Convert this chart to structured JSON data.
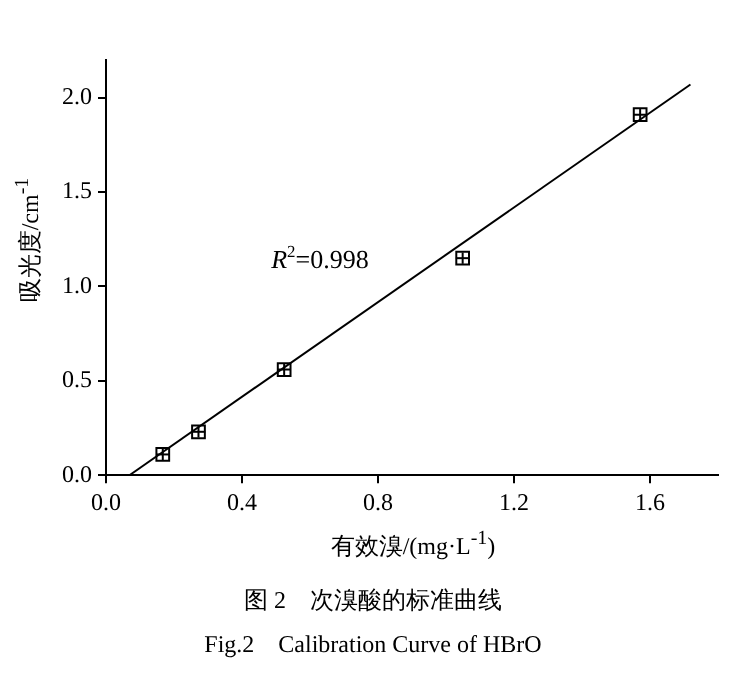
{
  "chart_data": {
    "type": "scatter",
    "xlabel": "有效溴/(mg·L$^{-1}$)",
    "ylabel": "吸光度/cm$^{-1}$",
    "x": [
      0.167,
      0.272,
      0.524,
      1.049,
      1.571
    ],
    "series": [
      {
        "color": "#000000",
        "values": [
          0.11,
          0.23,
          0.56,
          1.15,
          1.91
        ],
        "errors": [
          0.03,
          0.03,
          0.03,
          0.03,
          0.03
        ],
        "xerrors": [
          0.02,
          0.02,
          0.02,
          0.02,
          0.02
        ],
        "marker": "square"
      },
      {
        "type": "line",
        "color": "#000000",
        "x": [
          0.069,
          1.719
        ],
        "values": [
          0,
          2.07
        ],
        "marker": "none",
        "line_style": "solid"
      }
    ],
    "annotations": [
      "R$^{2}$=0.998",
      "图 2　次溴酸的标准曲线",
      "Fig.2　Calibration Curve of HBrO"
    ],
    "xlim": [
      0,
      1.8
    ],
    "xticks": [
      {
        "value": 0,
        "label": "0.0"
      },
      0.4,
      0.8,
      1.2,
      1.6
    ],
    "ylim": [
      0,
      2.2
    ],
    "yticks": [
      {
        "value": 0,
        "label": "0.0"
      },
      0.5,
      {
        "value": 1,
        "label": "1.0"
      },
      1.5,
      {
        "value": 2,
        "label": "2.0"
      }
    ],
    "grid": false,
    "legend": false
  }
}
